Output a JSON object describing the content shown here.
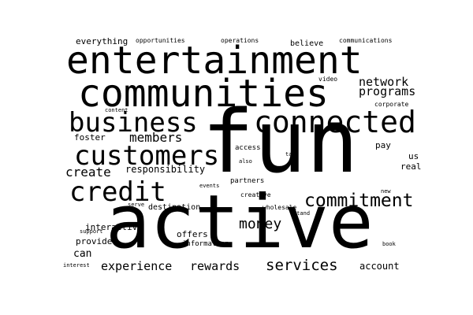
{
  "colors": {
    "background": "#ffffff",
    "text": "#000000"
  },
  "words": [
    {
      "id": "word-fun",
      "text": "fun"
    },
    {
      "id": "word-active",
      "text": "active"
    },
    {
      "id": "word-entertainment",
      "text": "entertainment"
    },
    {
      "id": "word-communities",
      "text": "communities"
    },
    {
      "id": "word-connected",
      "text": "connected"
    },
    {
      "id": "word-business",
      "text": "business"
    },
    {
      "id": "word-customers",
      "text": "customers"
    },
    {
      "id": "word-credit",
      "text": "credit"
    },
    {
      "id": "word-commitment",
      "text": "commitment"
    },
    {
      "id": "word-money",
      "text": "money"
    },
    {
      "id": "word-services",
      "text": "services"
    },
    {
      "id": "word-members",
      "text": "members"
    },
    {
      "id": "word-create",
      "text": "create"
    },
    {
      "id": "word-network",
      "text": "network"
    },
    {
      "id": "word-programs",
      "text": "programs"
    },
    {
      "id": "word-experience",
      "text": "experience"
    },
    {
      "id": "word-rewards",
      "text": "rewards"
    },
    {
      "id": "word-responsibility",
      "text": "responsibility"
    },
    {
      "id": "word-can",
      "text": "can"
    },
    {
      "id": "word-account",
      "text": "account"
    },
    {
      "id": "word-everything",
      "text": "everything"
    },
    {
      "id": "word-believe",
      "text": "believe"
    },
    {
      "id": "word-foster",
      "text": "foster"
    },
    {
      "id": "word-interactive",
      "text": "interactive"
    },
    {
      "id": "word-provide",
      "text": "provide"
    },
    {
      "id": "word-offers",
      "text": "offers"
    },
    {
      "id": "word-destination",
      "text": "destination"
    },
    {
      "id": "word-information",
      "text": "information"
    },
    {
      "id": "word-pay",
      "text": "pay"
    },
    {
      "id": "word-us",
      "text": "us"
    },
    {
      "id": "word-real",
      "text": "real"
    },
    {
      "id": "word-access",
      "text": "access"
    },
    {
      "id": "word-partners",
      "text": "partners"
    },
    {
      "id": "word-creative",
      "text": "creative"
    },
    {
      "id": "word-wholesale",
      "text": "wholesale"
    },
    {
      "id": "word-opportunities",
      "text": "opportunities"
    },
    {
      "id": "word-operations",
      "text": "operations"
    },
    {
      "id": "word-communications",
      "text": "communications"
    },
    {
      "id": "word-video",
      "text": "video"
    },
    {
      "id": "word-corporate",
      "text": "corporate"
    },
    {
      "id": "word-content",
      "text": "content"
    },
    {
      "id": "word-take",
      "text": "take"
    },
    {
      "id": "word-also",
      "text": "also"
    },
    {
      "id": "word-events",
      "text": "events"
    },
    {
      "id": "word-new",
      "text": "new"
    },
    {
      "id": "word-serve",
      "text": "serve"
    },
    {
      "id": "word-stand",
      "text": "stand"
    },
    {
      "id": "word-support",
      "text": "support"
    },
    {
      "id": "word-book",
      "text": "book"
    },
    {
      "id": "word-interest",
      "text": "interest"
    }
  ]
}
